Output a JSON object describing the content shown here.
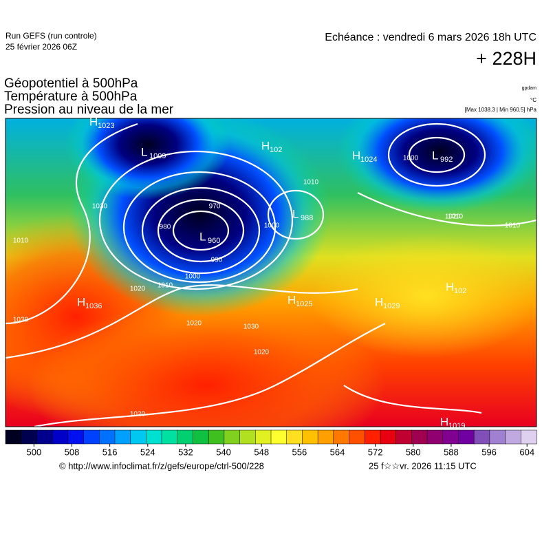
{
  "header": {
    "run": "Run GEFS (run controle)",
    "run_date": "25 février 2026 06Z",
    "valid": "Echéance : vendredi 6 mars 2026 18h UTC",
    "lead": "+ 228H",
    "titles": [
      "Géopotentiel à 500hPa",
      "Température à 500hPa",
      "Pression au niveau de la mer"
    ],
    "units": [
      "gpdam",
      "°C",
      "[Max 1038.3 | Min 960.5] hPa"
    ]
  },
  "map": {
    "centers": [
      {
        "kind": "H",
        "value": "1023"
      },
      {
        "kind": "L",
        "value": "1009"
      },
      {
        "kind": "H",
        "value": "102"
      },
      {
        "kind": "H",
        "value": "1024"
      },
      {
        "kind": "L",
        "value": "992"
      },
      {
        "kind": "L",
        "value": "960"
      },
      {
        "kind": "L",
        "value": "988"
      },
      {
        "kind": "H",
        "value": "1036"
      },
      {
        "kind": "H",
        "value": "1025"
      },
      {
        "kind": "H",
        "value": "1029"
      },
      {
        "kind": "H",
        "value": "102"
      },
      {
        "kind": "H",
        "value": "1019"
      }
    ],
    "isobar_labels": [
      "1030",
      "1020",
      "1010",
      "1000",
      "990",
      "980",
      "970",
      "1020",
      "1030",
      "1020",
      "1010",
      "1000",
      "1010",
      "1020",
      "1010",
      "1000",
      "1030",
      "1020",
      "1010"
    ]
  },
  "colorbar": {
    "lim": [
      494,
      606
    ],
    "ticks": [
      500,
      508,
      516,
      524,
      532,
      540,
      548,
      556,
      564,
      572,
      580,
      588,
      596,
      604
    ],
    "colors": [
      "#000020",
      "#000050",
      "#00008c",
      "#0000c8",
      "#0010f0",
      "#0040ff",
      "#0070ff",
      "#00a0ff",
      "#00c8f0",
      "#00e0d0",
      "#00e0a0",
      "#00d070",
      "#10c040",
      "#40c020",
      "#80d020",
      "#b0e020",
      "#e0f020",
      "#ffff30",
      "#ffe020",
      "#ffc000",
      "#ffa000",
      "#ff7800",
      "#ff5000",
      "#ff2000",
      "#e80010",
      "#c00030",
      "#a00050",
      "#900070",
      "#800090",
      "#7000a0",
      "#8050b8",
      "#a080d0",
      "#c0a8e0",
      "#e0d0f0"
    ]
  },
  "footer": {
    "url": "© http://www.infoclimat.fr/z/gefs/europe/ctrl-500/228",
    "stamp": "25 f☆☆vr. 2026 11:15 UTC"
  }
}
